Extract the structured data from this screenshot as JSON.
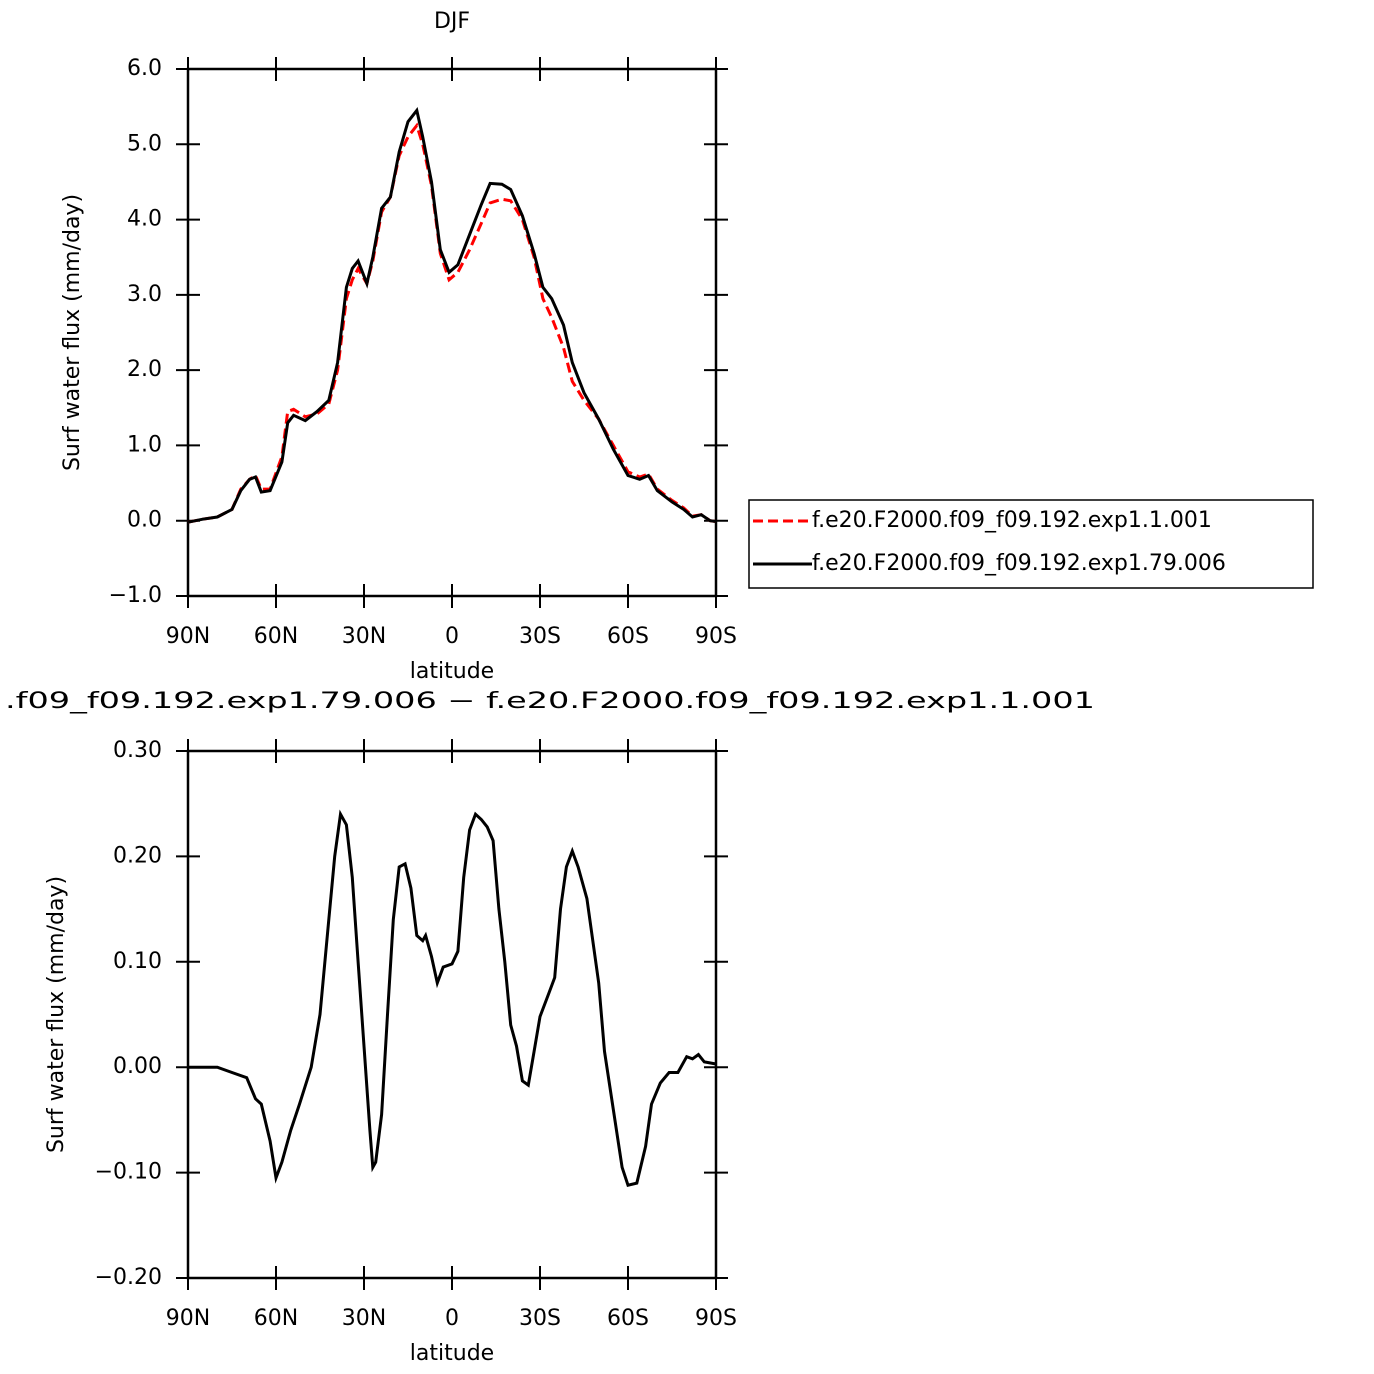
{
  "chart_data": [
    {
      "type": "line",
      "title": "DJF",
      "ylabel": "Surf water flux (mm/day)",
      "xlabel": "latitude",
      "x": [
        90,
        85,
        80,
        75,
        72,
        69,
        67,
        65,
        62,
        58,
        56,
        54,
        50,
        46,
        42,
        39,
        36,
        34,
        32,
        29,
        27,
        24,
        21,
        18,
        15,
        12,
        10,
        7,
        4,
        1,
        -2,
        -6,
        -10,
        -13,
        -17,
        -20,
        -24,
        -28,
        -31,
        -34,
        -38,
        -41,
        -45,
        -50,
        -55,
        -60,
        -64,
        -67,
        -70,
        -75,
        -79,
        -82,
        -85,
        -88,
        -90
      ],
      "series": [
        {
          "name": "f.e20.F2000.f09_f09.192.exp1.1.001",
          "color": "#ff0000",
          "line_style": "dashed",
          "values": [
            -0.02,
            0.02,
            0.05,
            0.15,
            0.42,
            0.55,
            0.6,
            0.42,
            0.42,
            0.85,
            1.45,
            1.48,
            1.38,
            1.42,
            1.55,
            2.0,
            2.95,
            3.2,
            3.35,
            3.15,
            3.45,
            4.1,
            4.3,
            4.85,
            5.1,
            5.25,
            5.0,
            4.45,
            3.55,
            3.2,
            3.3,
            3.6,
            3.95,
            4.22,
            4.27,
            4.25,
            4.0,
            3.5,
            2.95,
            2.7,
            2.3,
            1.85,
            1.6,
            1.35,
            1.0,
            0.65,
            0.58,
            0.62,
            0.42,
            0.27,
            0.17,
            0.06,
            0.08,
            0.0,
            -0.01
          ]
        },
        {
          "name": "f.e20.F2000.f09_f09.192.exp1.79.006",
          "color": "#000000",
          "line_style": "solid",
          "values": [
            -0.02,
            0.02,
            0.05,
            0.15,
            0.4,
            0.55,
            0.58,
            0.38,
            0.4,
            0.78,
            1.3,
            1.4,
            1.33,
            1.45,
            1.6,
            2.1,
            3.1,
            3.35,
            3.45,
            3.15,
            3.5,
            4.15,
            4.3,
            4.9,
            5.3,
            5.45,
            5.1,
            4.5,
            3.6,
            3.3,
            3.4,
            3.8,
            4.2,
            4.48,
            4.47,
            4.4,
            4.05,
            3.55,
            3.1,
            2.95,
            2.6,
            2.1,
            1.7,
            1.35,
            0.95,
            0.6,
            0.55,
            0.6,
            0.4,
            0.25,
            0.15,
            0.05,
            0.08,
            0.0,
            -0.01
          ]
        }
      ],
      "xlim": [
        90,
        -90
      ],
      "xticks": [
        {
          "value": 90,
          "label": "90N"
        },
        {
          "value": 60,
          "label": "60N"
        },
        {
          "value": 30,
          "label": "30N"
        },
        0,
        {
          "value": -30,
          "label": "30S"
        },
        {
          "value": -60,
          "label": "60S"
        },
        {
          "value": -90,
          "label": "90S"
        }
      ],
      "ylim": [
        -1,
        6
      ],
      "yticks": [
        {
          "value": -1,
          "label": "−1.0"
        },
        {
          "value": 0,
          "label": "0.0"
        },
        {
          "value": 1,
          "label": "1.0"
        },
        {
          "value": 2,
          "label": "2.0"
        },
        {
          "value": 3,
          "label": "3.0"
        },
        {
          "value": 4,
          "label": "4.0"
        },
        {
          "value": 5,
          "label": "5.0"
        },
        {
          "value": 6,
          "label": "6.0"
        }
      ],
      "legend": "right"
    },
    {
      "type": "line",
      "title": ".f09_f09.192.exp1.79.006 − f.e20.F2000.f09_f09.192.exp1.1.001",
      "ylabel": "Surf water flux (mm/day)",
      "xlabel": "latitude",
      "x": [
        90,
        80,
        75,
        70,
        67,
        65,
        62,
        60,
        58,
        55,
        52,
        48,
        45,
        42,
        40,
        38,
        36,
        34,
        32,
        30,
        28,
        27,
        26,
        24,
        22,
        20,
        18,
        16,
        14,
        12,
        10,
        9,
        7,
        5,
        3,
        0,
        -2,
        -4,
        -6,
        -8,
        -10,
        -12,
        -14,
        -16,
        -18,
        -20,
        -22,
        -24,
        -26,
        -28,
        -30,
        -33,
        -35,
        -37,
        -39,
        -41,
        -43,
        -46,
        -50,
        -52,
        -55,
        -58,
        -60,
        -63,
        -66,
        -68,
        -71,
        -74,
        -77,
        -80,
        -82,
        -84,
        -86,
        -90
      ],
      "series": [
        {
          "color": "#000000",
          "values": [
            0.0,
            0.0,
            -0.005,
            -0.01,
            -0.03,
            -0.035,
            -0.07,
            -0.105,
            -0.09,
            -0.06,
            -0.035,
            0.0,
            0.05,
            0.14,
            0.2,
            0.24,
            0.23,
            0.18,
            0.1,
            0.02,
            -0.06,
            -0.095,
            -0.09,
            -0.045,
            0.05,
            0.14,
            0.19,
            0.193,
            0.17,
            0.125,
            0.12,
            0.125,
            0.105,
            0.08,
            0.095,
            0.098,
            0.11,
            0.18,
            0.225,
            0.24,
            0.235,
            0.228,
            0.215,
            0.15,
            0.1,
            0.04,
            0.02,
            -0.013,
            -0.017,
            0.015,
            0.048,
            0.07,
            0.085,
            0.15,
            0.19,
            0.205,
            0.19,
            0.16,
            0.08,
            0.015,
            -0.04,
            -0.095,
            -0.112,
            -0.11,
            -0.075,
            -0.035,
            -0.015,
            -0.005,
            -0.005,
            0.01,
            0.008,
            0.012,
            0.005,
            0.003
          ]
        }
      ],
      "xlim": [
        90,
        -90
      ],
      "xticks": [
        {
          "value": 90,
          "label": "90N"
        },
        {
          "value": 60,
          "label": "60N"
        },
        {
          "value": 30,
          "label": "30N"
        },
        0,
        {
          "value": -30,
          "label": "30S"
        },
        {
          "value": -60,
          "label": "60S"
        },
        {
          "value": -90,
          "label": "90S"
        }
      ],
      "ylim": [
        -0.2,
        0.3
      ],
      "yticks": [
        {
          "value": -0.2,
          "label": "−0.20"
        },
        {
          "value": -0.1,
          "label": "−0.10"
        },
        {
          "value": 0,
          "label": "0.00"
        },
        {
          "value": 0.1,
          "label": "0.10"
        },
        {
          "value": 0.2,
          "label": "0.20"
        },
        {
          "value": 0.3,
          "label": "0.30"
        }
      ]
    }
  ]
}
